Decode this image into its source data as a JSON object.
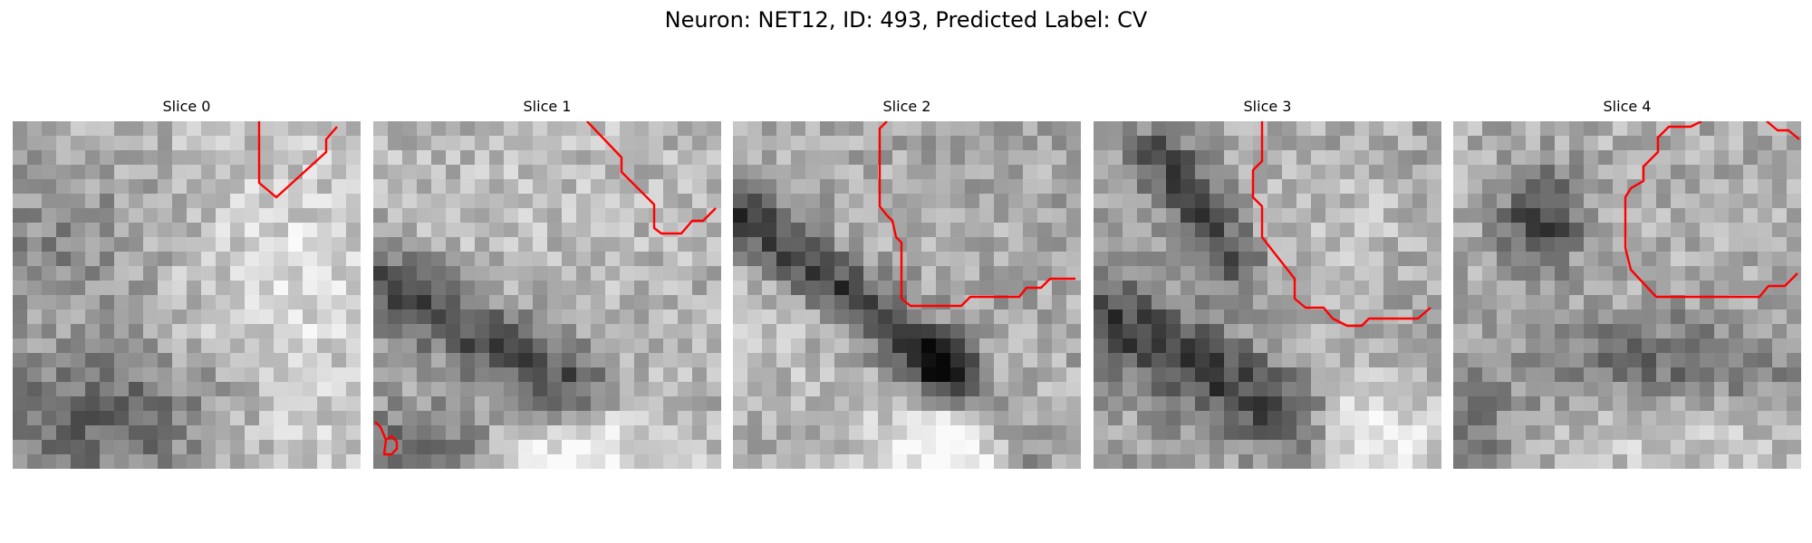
{
  "figure": {
    "suptitle": "Neuron: NET12, ID: 493, Predicted Label: CV",
    "contour_color": "#ff0000"
  },
  "slices": [
    {
      "title": "Slice 0"
    },
    {
      "title": "Slice 1"
    },
    {
      "title": "Slice 2"
    },
    {
      "title": "Slice 3"
    },
    {
      "title": "Slice 4"
    }
  ]
}
